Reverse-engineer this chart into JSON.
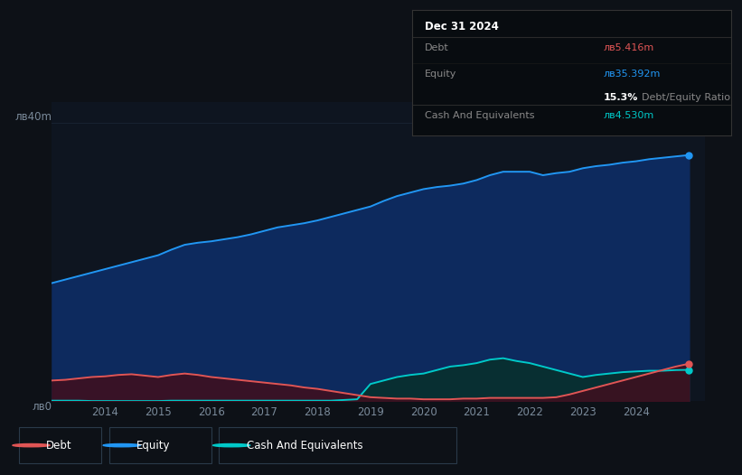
{
  "bg_color": "#0d1117",
  "plot_bg_color": "#0e1520",
  "grid_color": "#1a2535",
  "equity_color": "#2196F3",
  "equity_fill": "#0d2a5e",
  "debt_color": "#e05555",
  "debt_fill": "#3d1020",
  "cash_color": "#00c9c9",
  "cash_fill": "#083030",
  "legend_border_color": "#2a3a4a",
  "info_bg": "#080c10",
  "info_border": "#333333",
  "years": [
    2013.0,
    2013.25,
    2013.5,
    2013.75,
    2014.0,
    2014.25,
    2014.5,
    2014.75,
    2015.0,
    2015.25,
    2015.5,
    2015.75,
    2016.0,
    2016.25,
    2016.5,
    2016.75,
    2017.0,
    2017.25,
    2017.5,
    2017.75,
    2018.0,
    2018.25,
    2018.5,
    2018.75,
    2019.0,
    2019.25,
    2019.5,
    2019.75,
    2020.0,
    2020.25,
    2020.5,
    2020.75,
    2021.0,
    2021.25,
    2021.5,
    2021.75,
    2022.0,
    2022.25,
    2022.5,
    2022.75,
    2023.0,
    2023.25,
    2023.5,
    2023.75,
    2024.0,
    2024.25,
    2024.5,
    2024.75,
    2025.0
  ],
  "equity": [
    17.0,
    17.5,
    18.0,
    18.5,
    19.0,
    19.5,
    20.0,
    20.5,
    21.0,
    21.8,
    22.5,
    22.8,
    23.0,
    23.3,
    23.6,
    24.0,
    24.5,
    25.0,
    25.3,
    25.6,
    26.0,
    26.5,
    27.0,
    27.5,
    28.0,
    28.8,
    29.5,
    30.0,
    30.5,
    30.8,
    31.0,
    31.3,
    31.8,
    32.5,
    33.0,
    33.0,
    33.0,
    32.5,
    32.8,
    33.0,
    33.5,
    33.8,
    34.0,
    34.3,
    34.5,
    34.8,
    35.0,
    35.2,
    35.392
  ],
  "debt": [
    3.0,
    3.1,
    3.3,
    3.5,
    3.6,
    3.8,
    3.9,
    3.7,
    3.5,
    3.8,
    4.0,
    3.8,
    3.5,
    3.3,
    3.1,
    2.9,
    2.7,
    2.5,
    2.3,
    2.0,
    1.8,
    1.5,
    1.2,
    0.9,
    0.6,
    0.5,
    0.4,
    0.4,
    0.3,
    0.3,
    0.3,
    0.4,
    0.4,
    0.5,
    0.5,
    0.5,
    0.5,
    0.5,
    0.6,
    1.0,
    1.5,
    2.0,
    2.5,
    3.0,
    3.5,
    4.0,
    4.5,
    5.0,
    5.416
  ],
  "cash": [
    0.1,
    0.1,
    0.1,
    0.05,
    0.05,
    0.05,
    0.05,
    0.05,
    0.05,
    0.1,
    0.1,
    0.1,
    0.1,
    0.1,
    0.1,
    0.1,
    0.1,
    0.1,
    0.1,
    0.1,
    0.1,
    0.1,
    0.2,
    0.3,
    2.5,
    3.0,
    3.5,
    3.8,
    4.0,
    4.5,
    5.0,
    5.2,
    5.5,
    6.0,
    6.2,
    5.8,
    5.5,
    5.0,
    4.5,
    4.0,
    3.5,
    3.8,
    4.0,
    4.2,
    4.3,
    4.4,
    4.4,
    4.5,
    4.53
  ],
  "xticks": [
    2014,
    2015,
    2016,
    2017,
    2018,
    2019,
    2020,
    2021,
    2022,
    2023,
    2024
  ],
  "xlim": [
    2013.0,
    2025.3
  ],
  "ylim": [
    0,
    43
  ],
  "info_box": {
    "date": "Dec 31 2024",
    "debt_label": "Debt",
    "debt_value": "лв5.416m",
    "equity_label": "Equity",
    "equity_value": "лв35.392m",
    "ratio_pct": "15.3%",
    "ratio_label": "Debt/Equity Ratio",
    "cash_label": "Cash And Equivalents",
    "cash_value": "лв4.530m"
  },
  "legend_labels": [
    "Debt",
    "Equity",
    "Cash And Equivalents"
  ],
  "ylabel_top": "лв40m",
  "ylabel_bottom": "лв0"
}
